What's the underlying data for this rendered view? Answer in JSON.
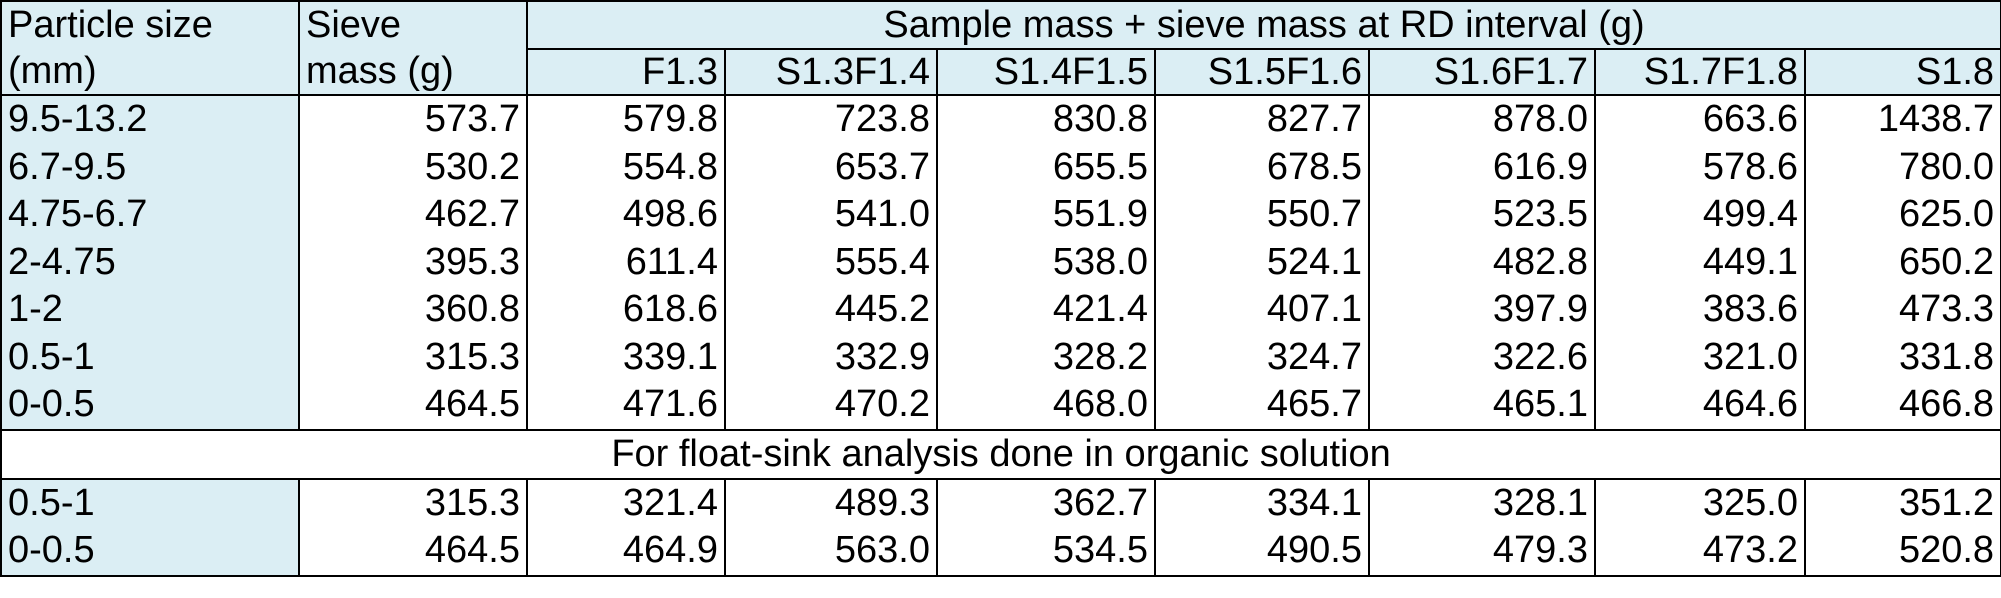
{
  "header": {
    "particle_size": "Particle size",
    "particle_size_unit": "(mm)",
    "sieve": "Sieve",
    "sieve_unit": "mass (g)",
    "group_title": "Sample mass + sieve mass at RD interval (g)",
    "columns": [
      "F1.3",
      "S1.3F1.4",
      "S1.4F1.5",
      "S1.5F1.6",
      "S1.6F1.7",
      "S1.7F1.8",
      "S1.8"
    ]
  },
  "rows": [
    {
      "size": "9.5-13.2",
      "sieve": "573.7",
      "values": [
        "579.8",
        "723.8",
        "830.8",
        "827.7",
        "878.0",
        "663.6",
        "1438.7"
      ]
    },
    {
      "size": "6.7-9.5",
      "sieve": "530.2",
      "values": [
        "554.8",
        "653.7",
        "655.5",
        "678.5",
        "616.9",
        "578.6",
        "780.0"
      ]
    },
    {
      "size": "4.75-6.7",
      "sieve": "462.7",
      "values": [
        "498.6",
        "541.0",
        "551.9",
        "550.7",
        "523.5",
        "499.4",
        "625.0"
      ]
    },
    {
      "size": "2-4.75",
      "sieve": "395.3",
      "values": [
        "611.4",
        "555.4",
        "538.0",
        "524.1",
        "482.8",
        "449.1",
        "650.2"
      ]
    },
    {
      "size": "1-2",
      "sieve": "360.8",
      "values": [
        "618.6",
        "445.2",
        "421.4",
        "407.1",
        "397.9",
        "383.6",
        "473.3"
      ]
    },
    {
      "size": "0.5-1",
      "sieve": "315.3",
      "values": [
        "339.1",
        "332.9",
        "328.2",
        "324.7",
        "322.6",
        "321.0",
        "331.8"
      ]
    },
    {
      "size": "0-0.5",
      "sieve": "464.5",
      "values": [
        "471.6",
        "470.2",
        "468.0",
        "465.7",
        "465.1",
        "464.6",
        "466.8"
      ]
    }
  ],
  "section_title": "For float-sink analysis done in organic solution",
  "organic_rows": [
    {
      "size": "0.5-1",
      "sieve": "315.3",
      "values": [
        "321.4",
        "489.3",
        "362.7",
        "334.1",
        "328.1",
        "325.0",
        "351.2"
      ]
    },
    {
      "size": "0-0.5",
      "sieve": "464.5",
      "values": [
        "464.9",
        "563.0",
        "534.5",
        "490.5",
        "479.3",
        "473.2",
        "520.8"
      ]
    }
  ],
  "colors": {
    "header_fill": "#dbeef4",
    "border": "#000000"
  }
}
